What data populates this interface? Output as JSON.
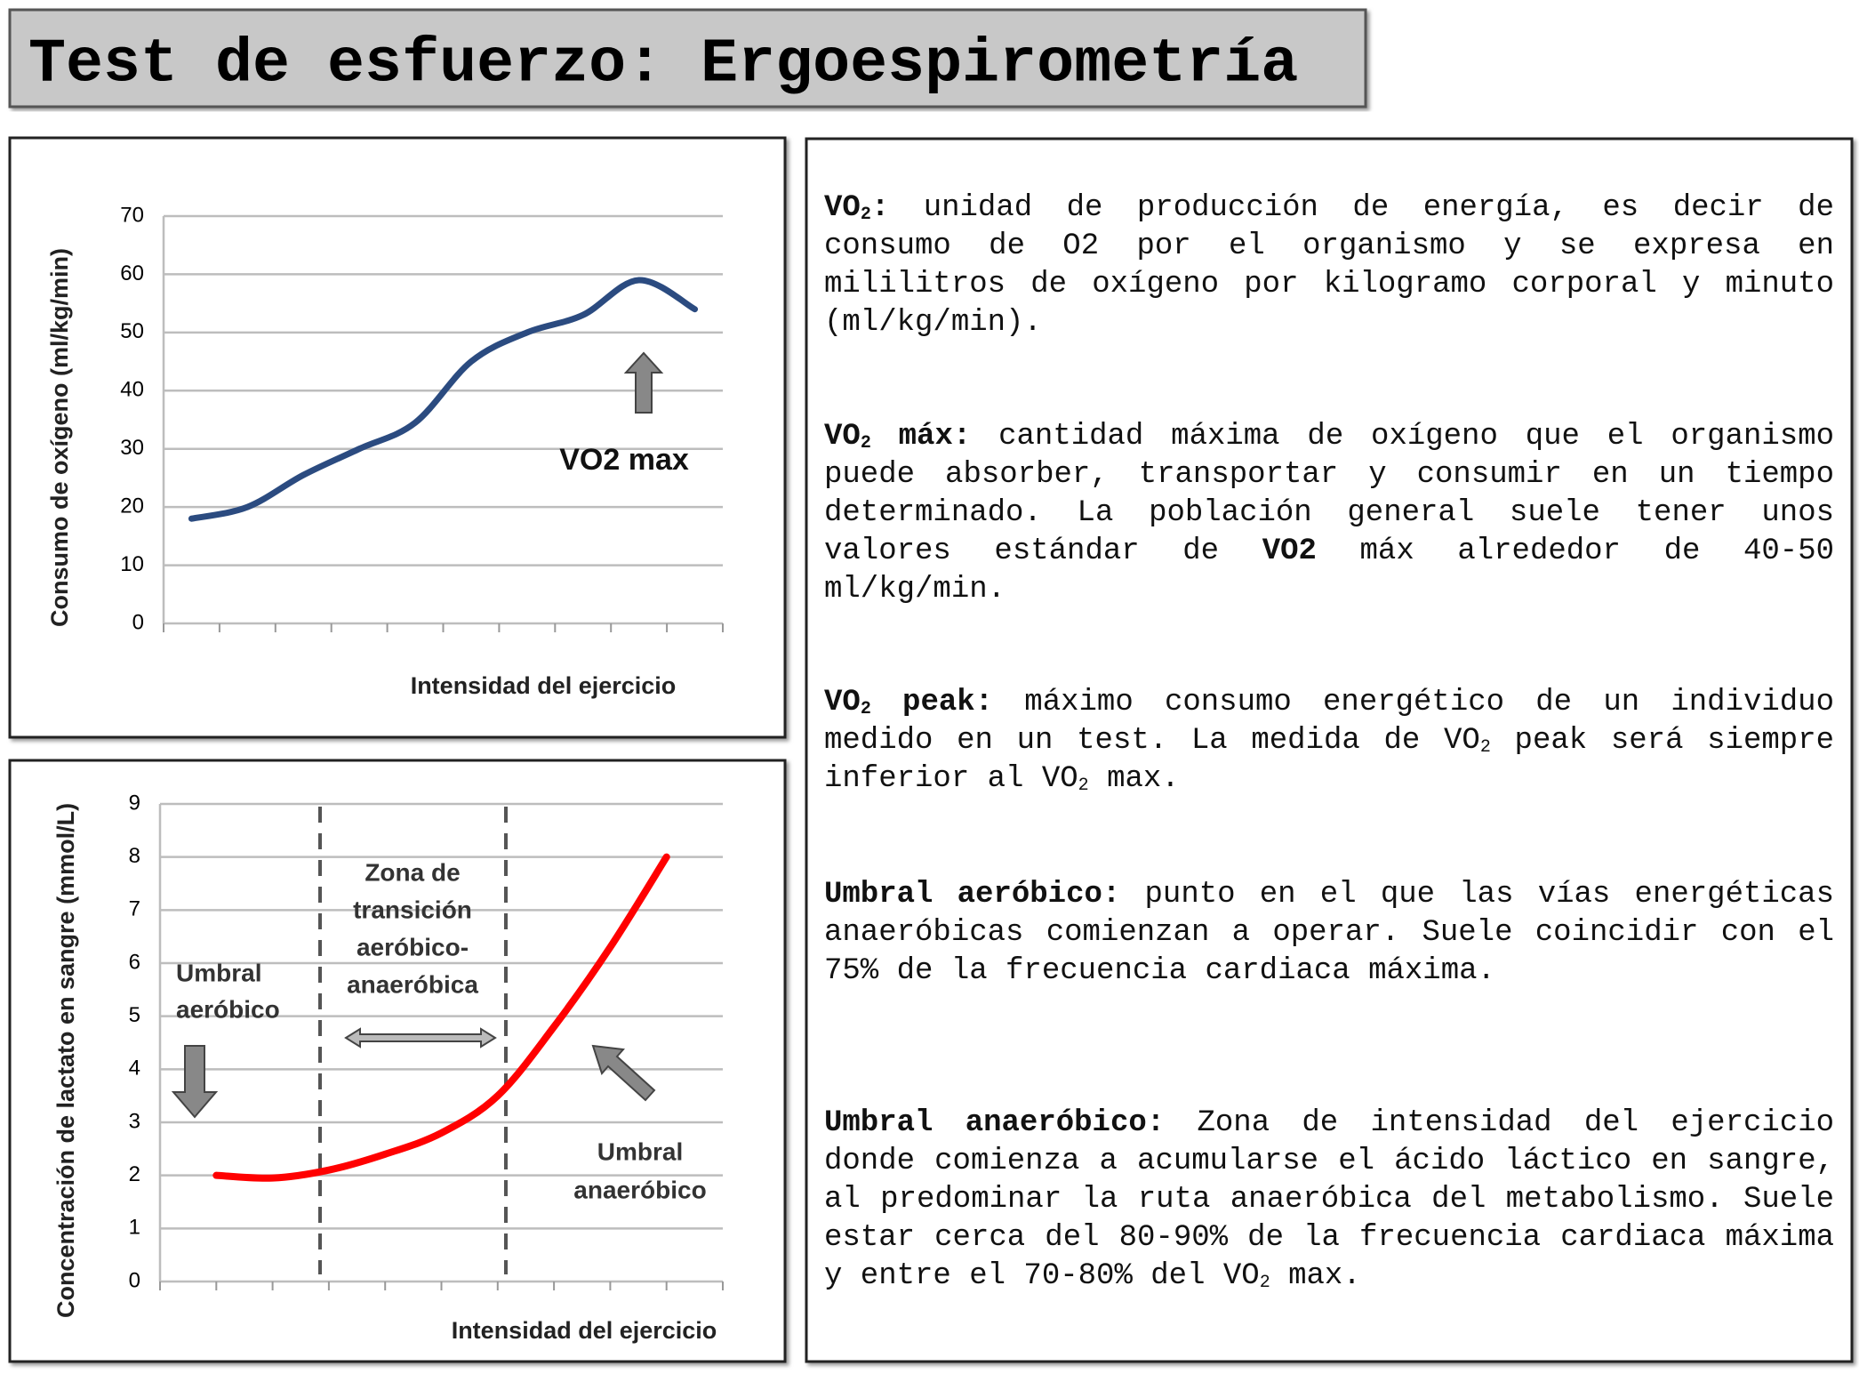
{
  "title": "Test de esfuerzo: Ergoespirometría",
  "chart_data": [
    {
      "type": "line",
      "categories": [
        null,
        null,
        null,
        null,
        null,
        null,
        null,
        null,
        null,
        null
      ],
      "series": [
        {
          "color": "#2b4b80",
          "values": [
            18,
            20,
            25.5,
            30,
            34.5,
            45,
            50,
            53,
            59,
            54
          ]
        }
      ],
      "ylim": [
        0,
        70
      ],
      "yticks": [
        0,
        10,
        20,
        30,
        40,
        50,
        60,
        70
      ],
      "grid": true,
      "ylabel": "Consumo de oxígeno (ml/kg/min)",
      "xlabel": "Intensidad del ejercicio",
      "annotations": [
        [
          "VO2 max"
        ]
      ]
    },
    {
      "type": "line",
      "categories": [
        null,
        null,
        null,
        null,
        null,
        null,
        null,
        null,
        null
      ],
      "series": [
        {
          "color": "#ff0000",
          "values": [
            2.0,
            1.95,
            2.1,
            2.4,
            2.8,
            3.5,
            4.8,
            6.3,
            8.0
          ]
        }
      ],
      "ylim": [
        0,
        9
      ],
      "yticks": [
        0,
        1,
        2,
        3,
        4,
        5,
        6,
        7,
        8,
        9
      ],
      "grid": true,
      "ylabel": "Concentración de lactato en sangre (mmol/L)",
      "xlabel": "Intensidad del ejercicio",
      "annotations": [
        [
          "Umbral",
          "aeróbico"
        ],
        [
          "Zona de",
          "transición",
          "aeróbico-",
          "anaeróbica"
        ],
        [
          "Umbral",
          "anaeróbico"
        ]
      ]
    }
  ],
  "definitions": [
    [
      {
        "text": "VO",
        "bold": true
      },
      {
        "text": "2",
        "bold": true,
        "sub": true
      },
      {
        "text": ":",
        "bold": true
      },
      {
        "text": " unidad de producción de energía, es decir de consumo de O2 por el organismo y se expresa en mililitros de oxígeno por kilogramo corporal y minuto (ml/kg/min)."
      }
    ],
    [
      {
        "text": "VO",
        "bold": true
      },
      {
        "text": "2",
        "bold": true,
        "sub": true
      },
      {
        "text": " máx:",
        "bold": true
      },
      {
        "text": " cantidad máxima de oxígeno que el organismo puede absorber, transportar y consumir en un tiempo determinado. La población general suele tener unos valores estándar de "
      },
      {
        "text": "VO2",
        "bold": true
      },
      {
        "text": " máx alrededor de 40-50 ml/kg/min."
      }
    ],
    [
      {
        "text": "VO",
        "bold": true
      },
      {
        "text": "2",
        "bold": true,
        "sub": true
      },
      {
        "text": " peak:",
        "bold": true
      },
      {
        "text": " máximo consumo energético de un individuo medido en un test. La medida de VO"
      },
      {
        "text": "2",
        "sub": true
      },
      {
        "text": " peak será siempre inferior al VO"
      },
      {
        "text": "2",
        "sub": true
      },
      {
        "text": " max."
      }
    ],
    [
      {
        "text": "Umbral aeróbico:",
        "bold": true
      },
      {
        "text": " punto en el que las vías energéticas anaeróbicas comienzan a operar. Suele coincidir con el 75% de la frecuencia cardiaca máxima."
      }
    ],
    [
      {
        "text": "Umbral anaeróbico:",
        "bold": true
      },
      {
        "text": " Zona de intensidad del ejercicio donde comienza a acumularse el ácido láctico en sangre, al predominar la ruta anaeróbica del metabolismo. Suele estar cerca del 80-90% de la frecuencia cardiaca máxima y entre el 70-80% del VO"
      },
      {
        "text": "2",
        "sub": true
      },
      {
        "text": " max."
      }
    ]
  ]
}
